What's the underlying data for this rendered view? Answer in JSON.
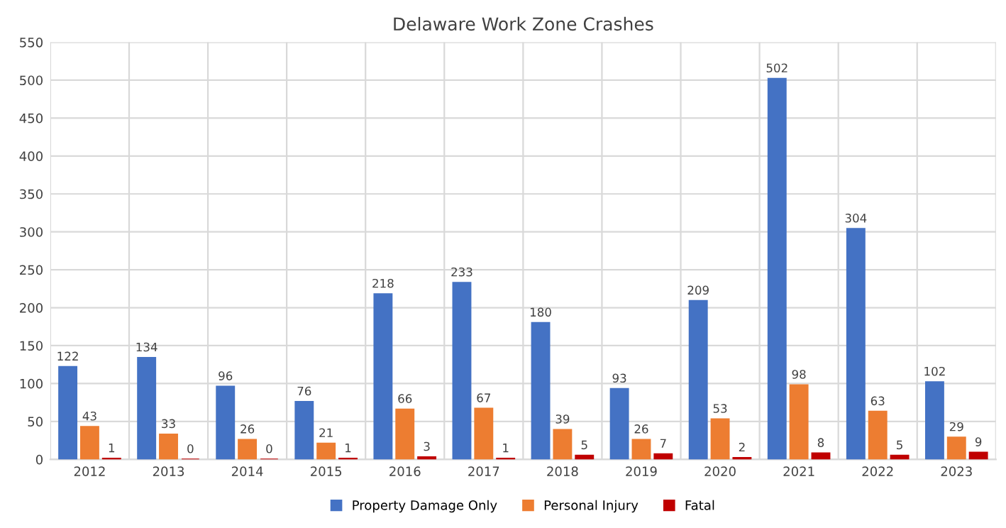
{
  "chart_data": {
    "type": "bar",
    "title": "Delaware Work Zone Crashes",
    "categories": [
      "2012",
      "2013",
      "2014",
      "2015",
      "2016",
      "2017",
      "2018",
      "2019",
      "2020",
      "2021",
      "2022",
      "2023"
    ],
    "series": [
      {
        "name": "Property Damage Only",
        "color": "#4472c4",
        "values": [
          122,
          134,
          96,
          76,
          218,
          233,
          180,
          93,
          209,
          502,
          304,
          102
        ]
      },
      {
        "name": "Personal Injury",
        "color": "#ed7d31",
        "values": [
          43,
          33,
          26,
          21,
          66,
          67,
          39,
          26,
          53,
          98,
          63,
          29
        ]
      },
      {
        "name": "Fatal",
        "color": "#c00000",
        "values": [
          1,
          0,
          0,
          1,
          3,
          1,
          5,
          7,
          2,
          8,
          5,
          9
        ]
      }
    ],
    "ylim": [
      0,
      550
    ],
    "yticks": [
      0,
      50,
      100,
      150,
      200,
      250,
      300,
      350,
      400,
      450,
      500,
      550
    ],
    "grid": true,
    "legend": "bottom",
    "data_labels": true
  }
}
